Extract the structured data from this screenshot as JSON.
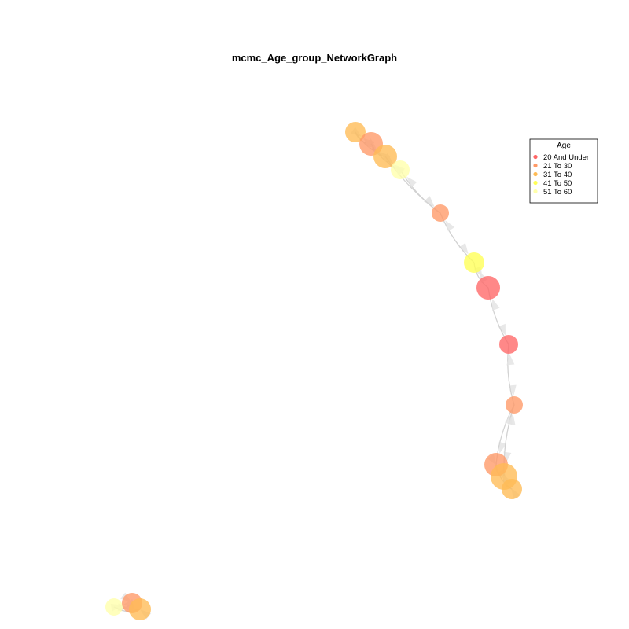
{
  "title": "mcmc_Age_group_NetworkGraph",
  "legend": {
    "title": "Age",
    "placement": "top-right",
    "items": [
      {
        "label": "20 And Under",
        "color": "#ff6666"
      },
      {
        "label": "21 To 30",
        "color": "#ff9966"
      },
      {
        "label": "31 To 40",
        "color": "#ffbb55"
      },
      {
        "label": "41 To 50",
        "color": "#ffff55"
      },
      {
        "label": "51 To 60",
        "color": "#ffffaa"
      }
    ]
  },
  "colors": {
    "edge": "#cfcfcf",
    "legend_border": "#000000"
  }
}
